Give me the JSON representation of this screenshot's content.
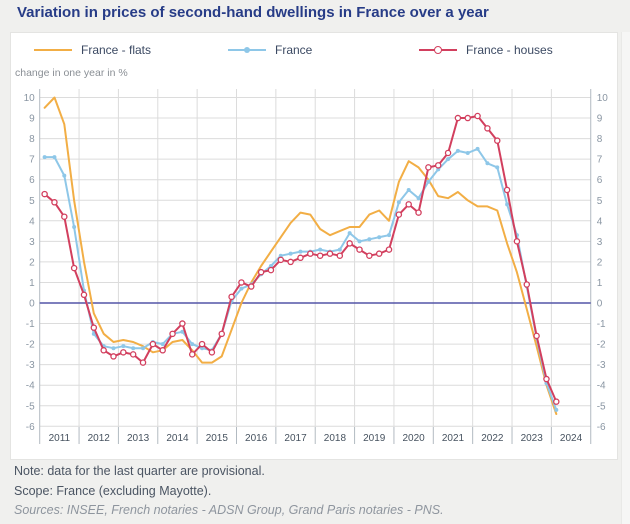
{
  "page": {
    "title": "Variation in prices of second-hand dwellings in France over a year"
  },
  "notes": {
    "note": "Note: data for the last quarter are provisional.",
    "scope": "Scope: France (excluding Mayotte).",
    "sources": "Sources: INSEE, French notaries - ADSN Group, Grand Paris notaries - PNS."
  },
  "chart_data": {
    "type": "line",
    "title": "Variation in prices of second-hand dwellings in France over a year",
    "ylabel": "change in one year in %",
    "xlabel": "",
    "x_frequency": "quarterly",
    "x_range": [
      "2011-Q1",
      "2024-Q1"
    ],
    "x_years": [
      2011,
      2012,
      2013,
      2014,
      2015,
      2016,
      2017,
      2018,
      2019,
      2020,
      2021,
      2022,
      2023,
      2024
    ],
    "ylim": [
      -6,
      10
    ],
    "y_tick_step": 1,
    "grid": true,
    "legend_position": "top",
    "zero_line_color": "#5355a7",
    "grid_color": "#dcdcdc",
    "series": [
      {
        "name": "France - flats",
        "color": "#f2ae45",
        "marker": "none",
        "values": [
          9.5,
          10.0,
          8.7,
          5.0,
          2.0,
          -0.5,
          -1.5,
          -1.9,
          -1.8,
          -1.9,
          -2.1,
          -2.4,
          -2.3,
          -1.9,
          -1.8,
          -2.3,
          -2.9,
          -2.9,
          -2.6,
          -1.3,
          0.0,
          1.0,
          1.8,
          2.5,
          3.2,
          3.9,
          4.4,
          4.3,
          3.6,
          3.3,
          3.5,
          3.7,
          3.7,
          4.3,
          4.5,
          4.0,
          5.9,
          6.9,
          6.6,
          6.0,
          5.2,
          5.1,
          5.4,
          5.0,
          4.7,
          4.7,
          4.5,
          2.9,
          1.5,
          -0.3,
          -2.1,
          -4.0,
          -5.4
        ]
      },
      {
        "name": "France",
        "color": "#8ec7e8",
        "marker": "dot",
        "values": [
          7.1,
          7.1,
          6.2,
          3.7,
          0.6,
          -1.5,
          -2.1,
          -2.2,
          -2.1,
          -2.2,
          -2.2,
          -1.9,
          -2.0,
          -1.5,
          -1.4,
          -2.0,
          -2.2,
          -2.3,
          -1.5,
          0.1,
          0.7,
          0.9,
          1.4,
          1.8,
          2.3,
          2.4,
          2.5,
          2.5,
          2.6,
          2.5,
          2.6,
          3.4,
          3.0,
          3.1,
          3.2,
          3.3,
          4.9,
          5.5,
          5.1,
          5.9,
          6.5,
          7.0,
          7.4,
          7.3,
          7.5,
          6.8,
          6.6,
          4.8,
          3.3,
          0.8,
          -1.7,
          -3.9,
          -5.2
        ]
      },
      {
        "name": "France - houses",
        "color": "#d23f5e",
        "marker": "open-circle",
        "values": [
          5.3,
          4.9,
          4.2,
          1.7,
          0.4,
          -1.2,
          -2.3,
          -2.6,
          -2.4,
          -2.5,
          -2.9,
          -2.0,
          -2.3,
          -1.5,
          -1.0,
          -2.5,
          -2.0,
          -2.4,
          -1.5,
          0.3,
          1.0,
          0.8,
          1.5,
          1.6,
          2.1,
          2.0,
          2.2,
          2.4,
          2.3,
          2.4,
          2.3,
          2.9,
          2.6,
          2.3,
          2.4,
          2.6,
          4.3,
          4.8,
          4.4,
          6.6,
          6.7,
          7.3,
          9.0,
          9.0,
          9.1,
          8.5,
          7.9,
          5.5,
          3.0,
          0.9,
          -1.6,
          -3.7,
          -4.8
        ]
      }
    ]
  }
}
